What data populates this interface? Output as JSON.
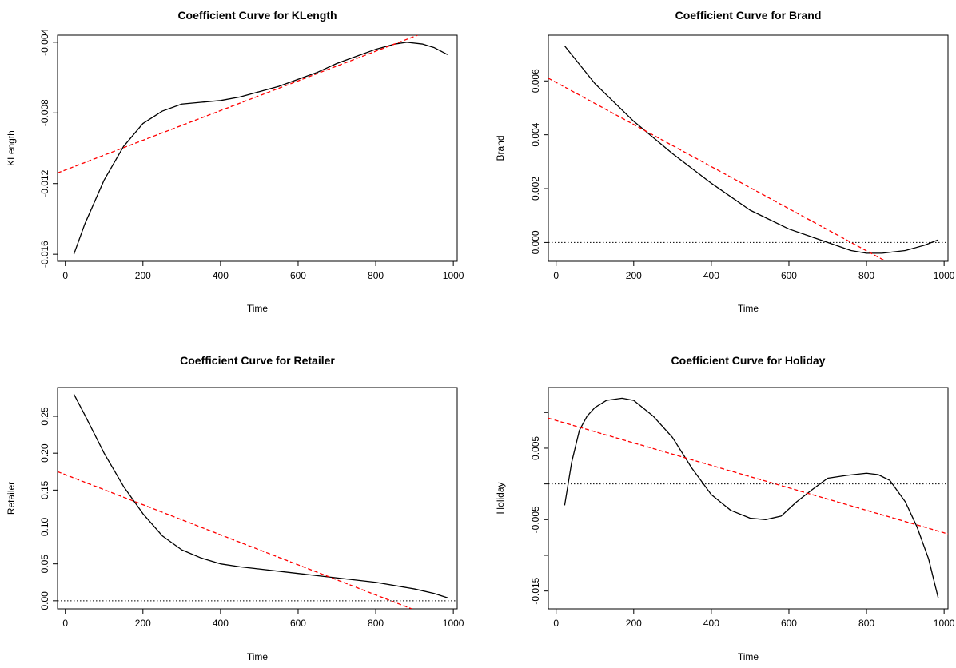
{
  "colors": {
    "fitted_curve": "#000000",
    "linear_trend": "#ff0000",
    "zero_line": "#000000"
  },
  "chart_data": [
    {
      "type": "line",
      "title": "Coefficient Curve for KLength",
      "xlabel": "Time",
      "ylabel": "KLength",
      "xlim": [
        -20,
        1010
      ],
      "ylim": [
        -0.0164,
        -0.0036
      ],
      "x_ticks": [
        0,
        200,
        400,
        600,
        800,
        1000
      ],
      "x_tick_labels": [
        "0",
        "200",
        "400",
        "600",
        "800",
        "1000"
      ],
      "y_ticks": [
        -0.016,
        -0.012,
        -0.008,
        -0.004
      ],
      "y_tick_labels": [
        "-0.016",
        "-0.012",
        "-0.008",
        "-0.004"
      ],
      "zero_line": false,
      "series": [
        {
          "style": "solid",
          "color": "#000000",
          "x": [
            22,
            50,
            100,
            150,
            200,
            250,
            300,
            350,
            400,
            450,
            500,
            550,
            600,
            650,
            700,
            750,
            800,
            850,
            880,
            920,
            950,
            985
          ],
          "y": [
            -0.016,
            -0.0143,
            -0.0118,
            -0.0099,
            -0.0086,
            -0.0079,
            -0.0075,
            -0.0074,
            -0.0073,
            -0.0071,
            -0.0068,
            -0.0065,
            -0.0061,
            -0.0057,
            -0.0052,
            -0.0048,
            -0.0044,
            -0.0041,
            -0.004,
            -0.0041,
            -0.0043,
            -0.0047
          ]
        },
        {
          "style": "dashed",
          "color": "#ff0000",
          "x": [
            -20,
            908
          ],
          "y": [
            -0.0114,
            -0.0036
          ]
        }
      ]
    },
    {
      "type": "line",
      "title": "Coefficient Curve for Brand",
      "xlabel": "Time",
      "ylabel": "Brand",
      "xlim": [
        -20,
        1010
      ],
      "ylim": [
        -0.0007,
        0.0077
      ],
      "x_ticks": [
        0,
        200,
        400,
        600,
        800,
        1000
      ],
      "x_tick_labels": [
        "0",
        "200",
        "400",
        "600",
        "800",
        "1000"
      ],
      "y_ticks": [
        0.0,
        0.002,
        0.004,
        0.006
      ],
      "y_tick_labels": [
        "0.000",
        "0.002",
        "0.004",
        "0.006"
      ],
      "zero_line": true,
      "series": [
        {
          "style": "solid",
          "color": "#000000",
          "x": [
            22,
            100,
            200,
            300,
            400,
            500,
            600,
            700,
            760,
            800,
            840,
            900,
            950,
            985
          ],
          "y": [
            0.0073,
            0.0059,
            0.0045,
            0.0033,
            0.0022,
            0.0012,
            0.0005,
            0.0,
            -0.0003,
            -0.0004,
            -0.0004,
            -0.0003,
            -0.0001,
            0.0001
          ]
        },
        {
          "style": "dashed",
          "color": "#ff0000",
          "x": [
            -20,
            850
          ],
          "y": [
            0.0061,
            -0.0007
          ]
        }
      ]
    },
    {
      "type": "line",
      "title": "Coefficient Curve for Retailer",
      "xlabel": "Time",
      "ylabel": "Retailer",
      "xlim": [
        -20,
        1010
      ],
      "ylim": [
        -0.011,
        0.289
      ],
      "x_ticks": [
        0,
        200,
        400,
        600,
        800,
        1000
      ],
      "x_tick_labels": [
        "0",
        "200",
        "400",
        "600",
        "800",
        "1000"
      ],
      "y_ticks": [
        0.0,
        0.05,
        0.1,
        0.15,
        0.2,
        0.25
      ],
      "y_tick_labels": [
        "0.00",
        "0.05",
        "0.10",
        "0.15",
        "0.20",
        "0.25"
      ],
      "zero_line": true,
      "series": [
        {
          "style": "solid",
          "color": "#000000",
          "x": [
            22,
            50,
            100,
            150,
            200,
            250,
            300,
            350,
            400,
            450,
            500,
            600,
            700,
            800,
            900,
            950,
            985
          ],
          "y": [
            0.28,
            0.252,
            0.2,
            0.155,
            0.118,
            0.088,
            0.069,
            0.058,
            0.05,
            0.046,
            0.043,
            0.037,
            0.031,
            0.025,
            0.016,
            0.01,
            0.004
          ]
        },
        {
          "style": "dashed",
          "color": "#ff0000",
          "x": [
            -20,
            893
          ],
          "y": [
            0.175,
            -0.011
          ]
        }
      ]
    },
    {
      "type": "line",
      "title": "Coefficient Curve for Holiday",
      "xlabel": "Time",
      "ylabel": "Holiday",
      "xlim": [
        -20,
        1010
      ],
      "ylim": [
        -0.0175,
        0.0135
      ],
      "x_ticks": [
        0,
        200,
        400,
        600,
        800,
        1000
      ],
      "x_tick_labels": [
        "0",
        "200",
        "400",
        "600",
        "800",
        "1000"
      ],
      "y_ticks": [
        -0.015,
        -0.005,
        0.005
      ],
      "y_tick_labels": [
        "-0.015",
        "-0.005",
        "0.005"
      ],
      "extra_y_ticks": [
        -0.01,
        0.0,
        0.01
      ],
      "zero_line": true,
      "series": [
        {
          "style": "solid",
          "color": "#000000",
          "x": [
            22,
            40,
            60,
            80,
            100,
            130,
            170,
            200,
            250,
            300,
            350,
            400,
            450,
            500,
            540,
            580,
            620,
            660,
            700,
            750,
            800,
            830,
            860,
            900,
            930,
            960,
            985
          ],
          "y": [
            -0.003,
            0.003,
            0.0075,
            0.0095,
            0.0107,
            0.0117,
            0.012,
            0.0117,
            0.0095,
            0.0065,
            0.0022,
            -0.0015,
            -0.0037,
            -0.0048,
            -0.005,
            -0.0045,
            -0.0025,
            -0.0008,
            0.0008,
            0.0012,
            0.0015,
            0.0013,
            0.0005,
            -0.0025,
            -0.006,
            -0.0105,
            -0.016
          ]
        },
        {
          "style": "dashed",
          "color": "#ff0000",
          "x": [
            -20,
            1010
          ],
          "y": [
            0.0092,
            -0.007
          ]
        }
      ]
    }
  ]
}
